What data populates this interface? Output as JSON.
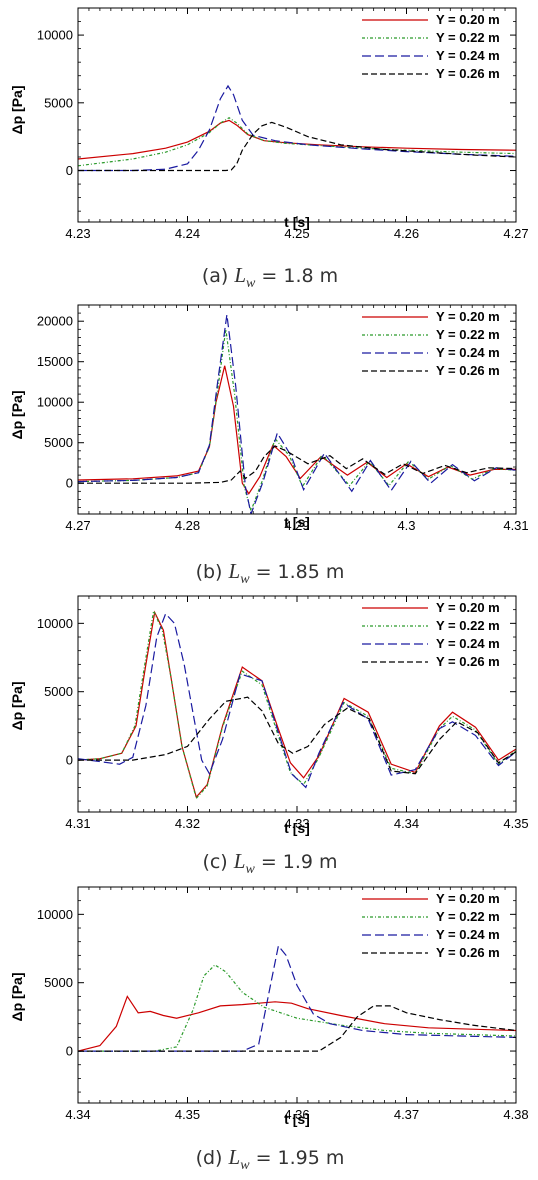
{
  "chart_data": [
    {
      "type": "line",
      "caption": {
        "prefix": "(a)",
        "var": "L",
        "sub": "w",
        "rest": "= 1.8 m"
      },
      "xlabel": "t [s]",
      "ylabel": "Δp [Pa]",
      "xlim": [
        4.23,
        4.27
      ],
      "ylim": [
        -3800,
        12000
      ],
      "xticks": [
        4.23,
        4.24,
        4.25,
        4.26,
        4.27
      ],
      "xtick_labels": [
        "4.23",
        "4.24",
        "4.25",
        "4.26",
        "4.27"
      ],
      "yticks": [
        0,
        5000,
        10000
      ],
      "ytick_labels": [
        "0",
        "5000",
        "10000"
      ],
      "legend_position": "top-right",
      "series": [
        {
          "name": "Y = 0.20 m",
          "color": "#cc0000",
          "dash": "",
          "x": [
            4.23,
            4.235,
            4.238,
            4.24,
            4.242,
            4.243,
            4.2438,
            4.2445,
            4.2455,
            4.247,
            4.249,
            4.252,
            4.256,
            4.26,
            4.265,
            4.27
          ],
          "y": [
            850,
            1250,
            1650,
            2100,
            2900,
            3500,
            3700,
            3350,
            2650,
            2200,
            2050,
            1900,
            1750,
            1650,
            1550,
            1500
          ]
        },
        {
          "name": "Y = 0.22 m",
          "color": "#2a9a2a",
          "dash": "3 2 1 2",
          "x": [
            4.23,
            4.235,
            4.238,
            4.24,
            4.242,
            4.243,
            4.2438,
            4.2445,
            4.2455,
            4.247,
            4.249,
            4.252,
            4.256,
            4.26,
            4.265,
            4.27
          ],
          "y": [
            350,
            850,
            1350,
            1900,
            2800,
            3500,
            3900,
            3500,
            2700,
            2200,
            2000,
            1850,
            1650,
            1500,
            1350,
            1250
          ]
        },
        {
          "name": "Y = 0.24 m",
          "color": "#1a1aa0",
          "dash": "9 4",
          "x": [
            4.23,
            4.235,
            4.238,
            4.24,
            4.241,
            4.242,
            4.243,
            4.2437,
            4.2442,
            4.245,
            4.246,
            4.248,
            4.251,
            4.256,
            4.26,
            4.265,
            4.27
          ],
          "y": [
            0,
            0,
            100,
            500,
            1500,
            3000,
            5300,
            6250,
            5600,
            3700,
            2600,
            2200,
            1900,
            1600,
            1400,
            1200,
            1050
          ]
        },
        {
          "name": "Y = 0.26 m",
          "color": "#000000",
          "dash": "6 3",
          "x": [
            4.23,
            4.24,
            4.2435,
            4.244,
            4.2445,
            4.245,
            4.246,
            4.2468,
            4.2477,
            4.249,
            4.251,
            4.254,
            4.258,
            4.262,
            4.266,
            4.27
          ],
          "y": [
            0,
            0,
            0,
            50,
            500,
            1500,
            2700,
            3300,
            3550,
            3200,
            2500,
            1900,
            1550,
            1350,
            1150,
            1000
          ]
        }
      ]
    },
    {
      "type": "line",
      "caption": {
        "prefix": "(b)",
        "var": "L",
        "sub": "w",
        "rest": "= 1.85 m"
      },
      "xlabel": "t [s]",
      "ylabel": "Δp [Pa]",
      "xlim": [
        4.27,
        4.31
      ],
      "ylim": [
        -3800,
        22000
      ],
      "xticks": [
        4.27,
        4.28,
        4.29,
        4.3,
        4.31
      ],
      "xtick_labels": [
        "4.27",
        "4.28",
        "4.29",
        "4.3",
        "4.31"
      ],
      "yticks": [
        0,
        5000,
        10000,
        15000,
        20000
      ],
      "ytick_labels": [
        "0",
        "5000",
        "10000",
        "15000",
        "20000"
      ],
      "legend_position": "top-right",
      "series": [
        {
          "name": "Y = 0.20 m",
          "color": "#cc0000",
          "dash": "",
          "x": [
            4.27,
            4.275,
            4.279,
            4.281,
            4.282,
            4.2826,
            4.2834,
            4.2842,
            4.285,
            4.2856,
            4.2866,
            4.2878,
            4.289,
            4.2903,
            4.2922,
            4.2946,
            4.2964,
            4.2982,
            4.3,
            4.302,
            4.3038,
            4.3058,
            4.308,
            4.31
          ],
          "y": [
            400,
            550,
            900,
            1500,
            4500,
            10000,
            14500,
            9500,
            0,
            -1300,
            800,
            4700,
            3300,
            600,
            3300,
            1000,
            2600,
            700,
            2400,
            800,
            2000,
            1000,
            1700,
            1700
          ]
        },
        {
          "name": "Y = 0.22 m",
          "color": "#2a9a2a",
          "dash": "3 2 1 2",
          "x": [
            4.27,
            4.275,
            4.279,
            4.281,
            4.282,
            4.2828,
            4.2835,
            4.2843,
            4.2852,
            4.2858,
            4.2868,
            4.288,
            4.2893,
            4.2905,
            4.2923,
            4.2948,
            4.2966,
            4.2984,
            4.3002,
            4.302,
            4.304,
            4.306,
            4.308,
            4.31
          ],
          "y": [
            200,
            350,
            700,
            1300,
            4500,
            12000,
            19000,
            11000,
            -500,
            -3400,
            200,
            5500,
            3400,
            -400,
            3500,
            -300,
            2700,
            -300,
            2700,
            500,
            2200,
            500,
            1800,
            1600
          ]
        },
        {
          "name": "Y = 0.24 m",
          "color": "#1a1aa0",
          "dash": "9 4",
          "x": [
            4.27,
            4.275,
            4.279,
            4.281,
            4.282,
            4.2828,
            4.2836,
            4.2844,
            4.2853,
            4.2858,
            4.2869,
            4.2882,
            4.2895,
            4.2906,
            4.2925,
            4.295,
            4.2967,
            4.2986,
            4.3004,
            4.3022,
            4.3042,
            4.3062,
            4.3082,
            4.31
          ],
          "y": [
            200,
            350,
            700,
            1300,
            4700,
            13000,
            20800,
            12000,
            -500,
            -3800,
            200,
            6200,
            3300,
            -800,
            3700,
            -1000,
            2800,
            -900,
            2700,
            0,
            2300,
            300,
            1900,
            1600
          ]
        },
        {
          "name": "Y = 0.26 m",
          "color": "#000000",
          "dash": "6 3",
          "x": [
            4.27,
            4.28,
            4.283,
            4.284,
            4.2848,
            4.2853,
            4.2862,
            4.287,
            4.288,
            4.289,
            4.291,
            4.293,
            4.2945,
            4.296,
            4.298,
            4.2997,
            4.3015,
            4.3035,
            4.3055,
            4.3075,
            4.31
          ],
          "y": [
            0,
            0,
            100,
            400,
            1500,
            600,
            1500,
            3300,
            4600,
            4000,
            2400,
            3400,
            1800,
            3000,
            1100,
            2400,
            1200,
            2200,
            1300,
            1900,
            1800
          ]
        }
      ]
    },
    {
      "type": "line",
      "caption": {
        "prefix": "(c)",
        "var": "L",
        "sub": "w",
        "rest": "= 1.9 m"
      },
      "xlabel": "t [s]",
      "ylabel": "Δp [Pa]",
      "xlim": [
        4.31,
        4.35
      ],
      "ylim": [
        -3800,
        12000
      ],
      "xticks": [
        4.31,
        4.32,
        4.33,
        4.34,
        4.35
      ],
      "xtick_labels": [
        "4.31",
        "4.32",
        "4.33",
        "4.34",
        "4.35"
      ],
      "yticks": [
        0,
        5000,
        10000
      ],
      "ytick_labels": [
        "0",
        "5000",
        "10000"
      ],
      "legend_position": "top-right",
      "series": [
        {
          "name": "Y = 0.20 m",
          "color": "#cc0000",
          "dash": "",
          "x": [
            4.31,
            4.312,
            4.314,
            4.3153,
            4.3162,
            4.317,
            4.3178,
            4.3185,
            4.3195,
            4.3208,
            4.3218,
            4.3232,
            4.325,
            4.3268,
            4.3282,
            4.3294,
            4.3306,
            4.332,
            4.3343,
            4.3365,
            4.3386,
            4.3408,
            4.343,
            4.3442,
            4.3463,
            4.3484,
            4.35
          ],
          "y": [
            0,
            100,
            500,
            2500,
            7000,
            10800,
            9500,
            6000,
            1000,
            -2700,
            -1800,
            2500,
            6800,
            5800,
            2500,
            -200,
            -1300,
            300,
            4500,
            3500,
            -300,
            -900,
            2500,
            3500,
            2400,
            0,
            800
          ]
        },
        {
          "name": "Y = 0.22 m",
          "color": "#2a9a2a",
          "dash": "3 2 1 2",
          "x": [
            4.31,
            4.312,
            4.314,
            4.3152,
            4.3161,
            4.3169,
            4.3177,
            4.3185,
            4.3195,
            4.3208,
            4.3218,
            4.3232,
            4.325,
            4.3268,
            4.3282,
            4.3294,
            4.3306,
            4.332,
            4.3343,
            4.3365,
            4.3386,
            4.3408,
            4.343,
            4.3442,
            4.3463,
            4.3484,
            4.35
          ],
          "y": [
            0,
            100,
            500,
            2500,
            7000,
            10900,
            9500,
            6000,
            1000,
            -2800,
            -1900,
            2400,
            6500,
            5500,
            2000,
            -900,
            -1800,
            200,
            4200,
            3200,
            -600,
            -1000,
            2300,
            3200,
            2200,
            -300,
            700
          ]
        },
        {
          "name": "Y = 0.24 m",
          "color": "#1a1aa0",
          "dash": "9 4",
          "x": [
            4.31,
            4.3138,
            4.315,
            4.3162,
            4.3172,
            4.318,
            4.3188,
            4.3197,
            4.3206,
            4.3213,
            4.322,
            4.3232,
            4.3248,
            4.3268,
            4.3283,
            4.3295,
            4.3308,
            4.332,
            4.3342,
            4.3365,
            4.3386,
            4.3408,
            4.343,
            4.3442,
            4.3463,
            4.3484,
            4.35
          ],
          "y": [
            100,
            -300,
            200,
            4000,
            9000,
            10700,
            10000,
            7000,
            3000,
            0,
            -1000,
            1500,
            6300,
            5800,
            2000,
            -1000,
            -2000,
            500,
            4200,
            3000,
            -1100,
            -700,
            2300,
            2800,
            1800,
            -400,
            600
          ]
        },
        {
          "name": "Y = 0.26 m",
          "color": "#000000",
          "dash": "6 3",
          "x": [
            4.31,
            4.315,
            4.318,
            4.32,
            4.322,
            4.3235,
            4.3255,
            4.3268,
            4.3283,
            4.3296,
            4.331,
            4.3325,
            4.3346,
            4.3366,
            4.3386,
            4.3408,
            4.343,
            4.3446,
            4.3465,
            4.3484,
            4.35
          ],
          "y": [
            0,
            0,
            400,
            1000,
            3000,
            4300,
            4600,
            3600,
            1200,
            500,
            1000,
            2600,
            3800,
            3000,
            -800,
            -1000,
            1500,
            2800,
            2000,
            -200,
            600
          ]
        }
      ]
    },
    {
      "type": "line",
      "caption": {
        "prefix": "(d)",
        "var": "L",
        "sub": "w",
        "rest": "= 1.95 m"
      },
      "xlabel": "t [s]",
      "ylabel": "Δp [Pa]",
      "xlim": [
        4.34,
        4.38
      ],
      "ylim": [
        -3800,
        12000
      ],
      "xticks": [
        4.34,
        4.35,
        4.36,
        4.37,
        4.38
      ],
      "xtick_labels": [
        "4.34",
        "4.35",
        "4.36",
        "4.37",
        "4.38"
      ],
      "yticks": [
        0,
        5000,
        10000
      ],
      "ytick_labels": [
        "0",
        "5000",
        "10000"
      ],
      "legend_position": "top-right",
      "series": [
        {
          "name": "Y = 0.20 m",
          "color": "#cc0000",
          "dash": "",
          "x": [
            4.34,
            4.342,
            4.3435,
            4.3445,
            4.3455,
            4.3466,
            4.3478,
            4.349,
            4.351,
            4.353,
            4.355,
            4.3565,
            4.358,
            4.3595,
            4.361,
            4.364,
            4.368,
            4.372,
            4.376,
            4.38
          ],
          "y": [
            0,
            400,
            1800,
            4000,
            2800,
            2900,
            2600,
            2400,
            2800,
            3300,
            3400,
            3500,
            3600,
            3500,
            3100,
            2600,
            2000,
            1700,
            1600,
            1500
          ]
        },
        {
          "name": "Y = 0.22 m",
          "color": "#2a9a2a",
          "dash": "3 2 1 2",
          "x": [
            4.34,
            4.347,
            4.349,
            4.3505,
            4.3515,
            4.3525,
            4.3535,
            4.355,
            4.357,
            4.36,
            4.364,
            4.368,
            4.372,
            4.376,
            4.38
          ],
          "y": [
            0,
            0,
            300,
            3000,
            5500,
            6300,
            5800,
            4300,
            3200,
            2400,
            1900,
            1500,
            1300,
            1200,
            1100
          ]
        },
        {
          "name": "Y = 0.24 m",
          "color": "#1a1aa0",
          "dash": "9 4",
          "x": [
            4.34,
            4.355,
            4.3565,
            4.3575,
            4.3583,
            4.359,
            4.36,
            4.3615,
            4.363,
            4.366,
            4.37,
            4.375,
            4.38
          ],
          "y": [
            0,
            0,
            500,
            4500,
            7700,
            7000,
            4800,
            2700,
            2000,
            1500,
            1200,
            1100,
            1000
          ]
        },
        {
          "name": "Y = 0.26 m",
          "color": "#000000",
          "dash": "6 3",
          "x": [
            4.34,
            4.362,
            4.364,
            4.3655,
            4.367,
            4.3685,
            4.37,
            4.373,
            4.376,
            4.38
          ],
          "y": [
            0,
            0,
            1000,
            2500,
            3300,
            3300,
            2800,
            2300,
            1900,
            1500
          ]
        }
      ]
    }
  ]
}
